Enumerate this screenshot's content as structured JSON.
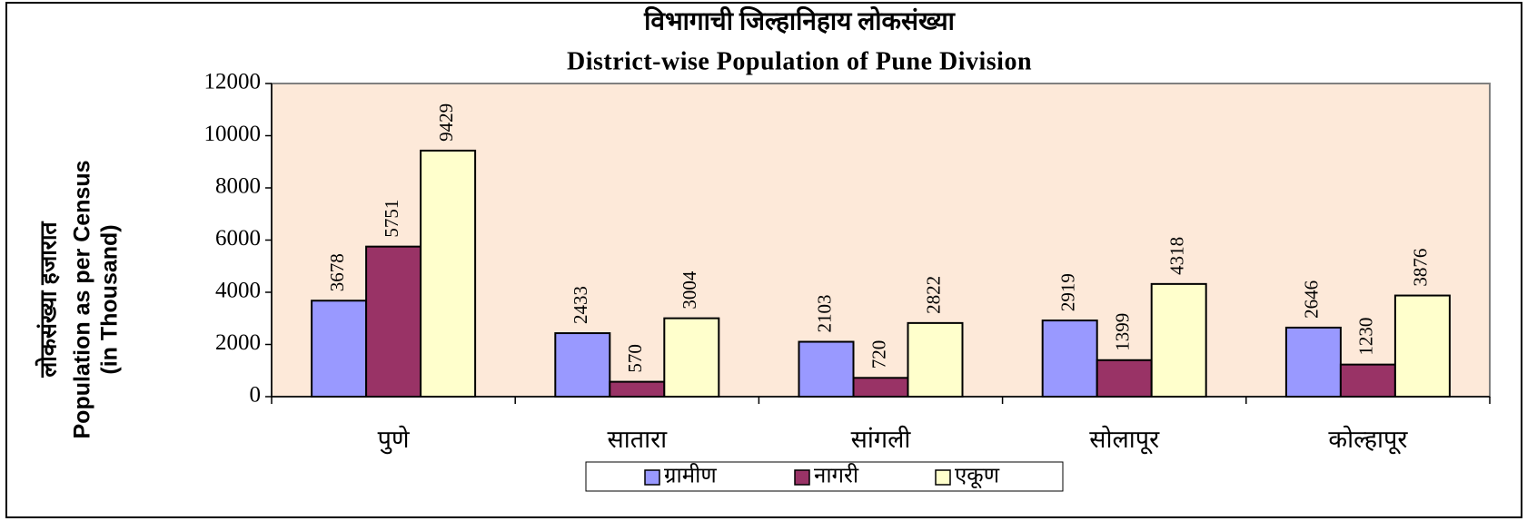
{
  "chart_data": {
    "type": "bar",
    "title": "विभागाची जिल्हानिहाय लोकसंख्या",
    "subtitle": "District-wise Population of Pune Division",
    "y_axis_label": [
      "लोकसंख्या हजारात",
      "Population as per Census",
      "(in Thousand)"
    ],
    "categories": [
      "पुणे",
      "सातारा",
      "सांगली",
      "सोलापूर",
      "कोल्हापूर"
    ],
    "series": [
      {
        "name": "ग्रामीण",
        "color": "#9999ff",
        "values": [
          3678,
          2433,
          2103,
          2919,
          2646
        ]
      },
      {
        "name": "नागरी",
        "color": "#993366",
        "values": [
          5751,
          570,
          720,
          1399,
          1230
        ]
      },
      {
        "name": "एकूण",
        "color": "#ffffcc",
        "values": [
          9429,
          3004,
          2822,
          4318,
          3876
        ]
      }
    ],
    "ylim": [
      0,
      12000
    ],
    "yticks": [
      0,
      2000,
      4000,
      6000,
      8000,
      10000,
      12000
    ],
    "plot_background": "#fde9d9",
    "legend": "bottom"
  }
}
